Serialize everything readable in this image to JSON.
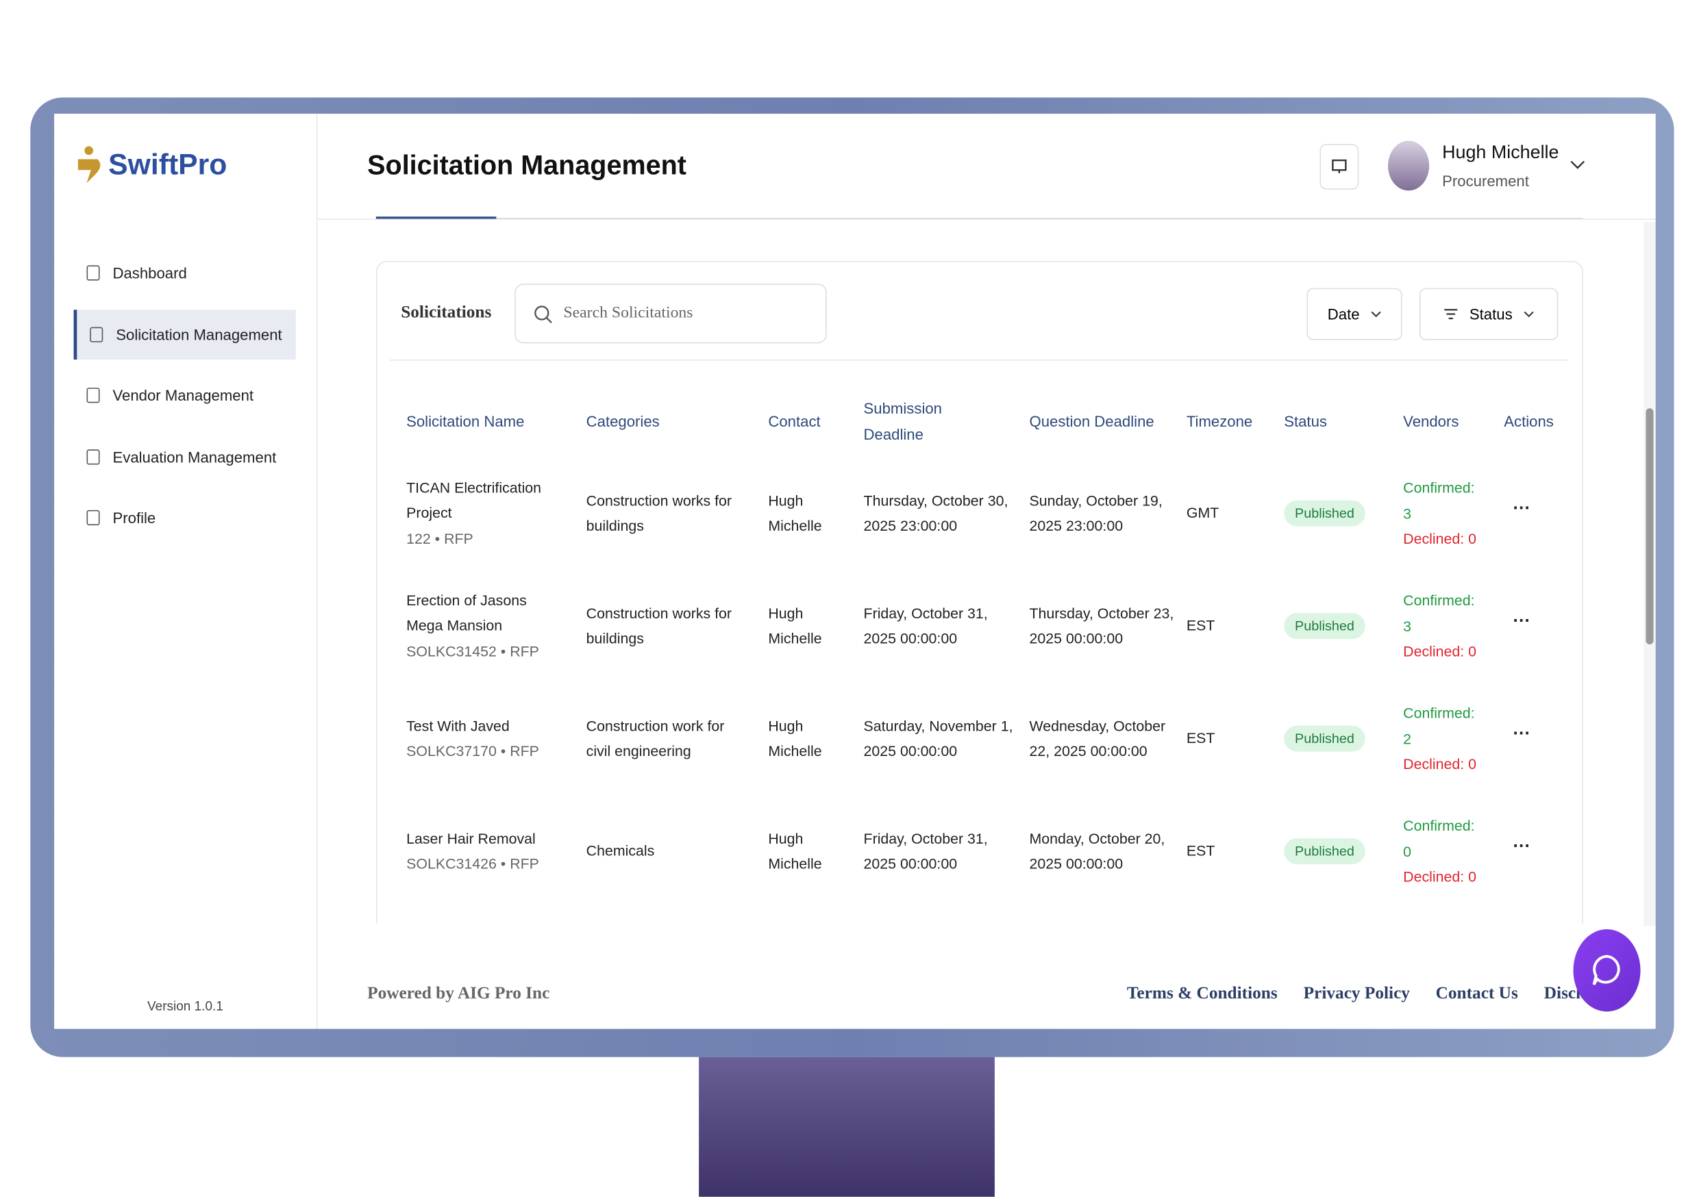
{
  "brand": "SwiftPro",
  "nav": [
    "Dashboard",
    "Solicitation Management",
    "Vendor Management",
    "Evaluation Management",
    "Profile"
  ],
  "version": "Version 1.0.1",
  "header": {
    "title": "Solicitation Management",
    "user_name": "Hugh Michelle",
    "user_role": "Procurement"
  },
  "toolbar": {
    "label": "Solicitations",
    "search_placeholder": "Search Solicitations",
    "date_filter": "Date",
    "status_filter": "Status"
  },
  "table": {
    "columns": [
      "Solicitation Name",
      "Categories",
      "Contact",
      "Submission Deadline",
      "Question Deadline",
      "Timezone",
      "Status",
      "Vendors",
      "Actions"
    ],
    "rows": [
      {
        "name": "TICAN Electrification Project",
        "ref": "122 • RFP",
        "category": "Construction works for buildings",
        "contact": "Hugh Michelle",
        "submission": "Thursday, October 30, 2025 23:00:00",
        "question": "Sunday, October 19, 2025 23:00:00",
        "timezone": "GMT",
        "status": "Published",
        "confirmed": "Confirmed: 3",
        "declined": "Declined: 0"
      },
      {
        "name": "Erection of Jasons Mega Mansion",
        "ref": "SOLKC31452 • RFP",
        "category": "Construction works for buildings",
        "contact": "Hugh Michelle",
        "submission": "Friday, October 31, 2025 00:00:00",
        "question": "Thursday, October 23, 2025 00:00:00",
        "timezone": "EST",
        "status": "Published",
        "confirmed": "Confirmed: 3",
        "declined": "Declined: 0"
      },
      {
        "name": "Test With Javed",
        "ref": "SOLKC37170 • RFP",
        "category": "Construction work for civil engineering",
        "contact": "Hugh Michelle",
        "submission": "Saturday, November 1, 2025 00:00:00",
        "question": "Wednesday, October 22, 2025 00:00:00",
        "timezone": "EST",
        "status": "Published",
        "confirmed": "Confirmed: 2",
        "declined": "Declined: 0"
      },
      {
        "name": "Laser Hair Removal",
        "ref": "SOLKC31426 • RFP",
        "category": "Chemicals",
        "contact": "Hugh Michelle",
        "submission": "Friday, October 31, 2025 00:00:00",
        "question": "Monday, October 20, 2025 00:00:00",
        "timezone": "EST",
        "status": "Published",
        "confirmed": "Confirmed: 0",
        "declined": "Declined: 0"
      }
    ]
  },
  "footer": {
    "powered": "Powered by AIG Pro Inc",
    "links": [
      "Terms & Conditions",
      "Privacy Policy",
      "Contact Us",
      "Disclaimer"
    ]
  }
}
